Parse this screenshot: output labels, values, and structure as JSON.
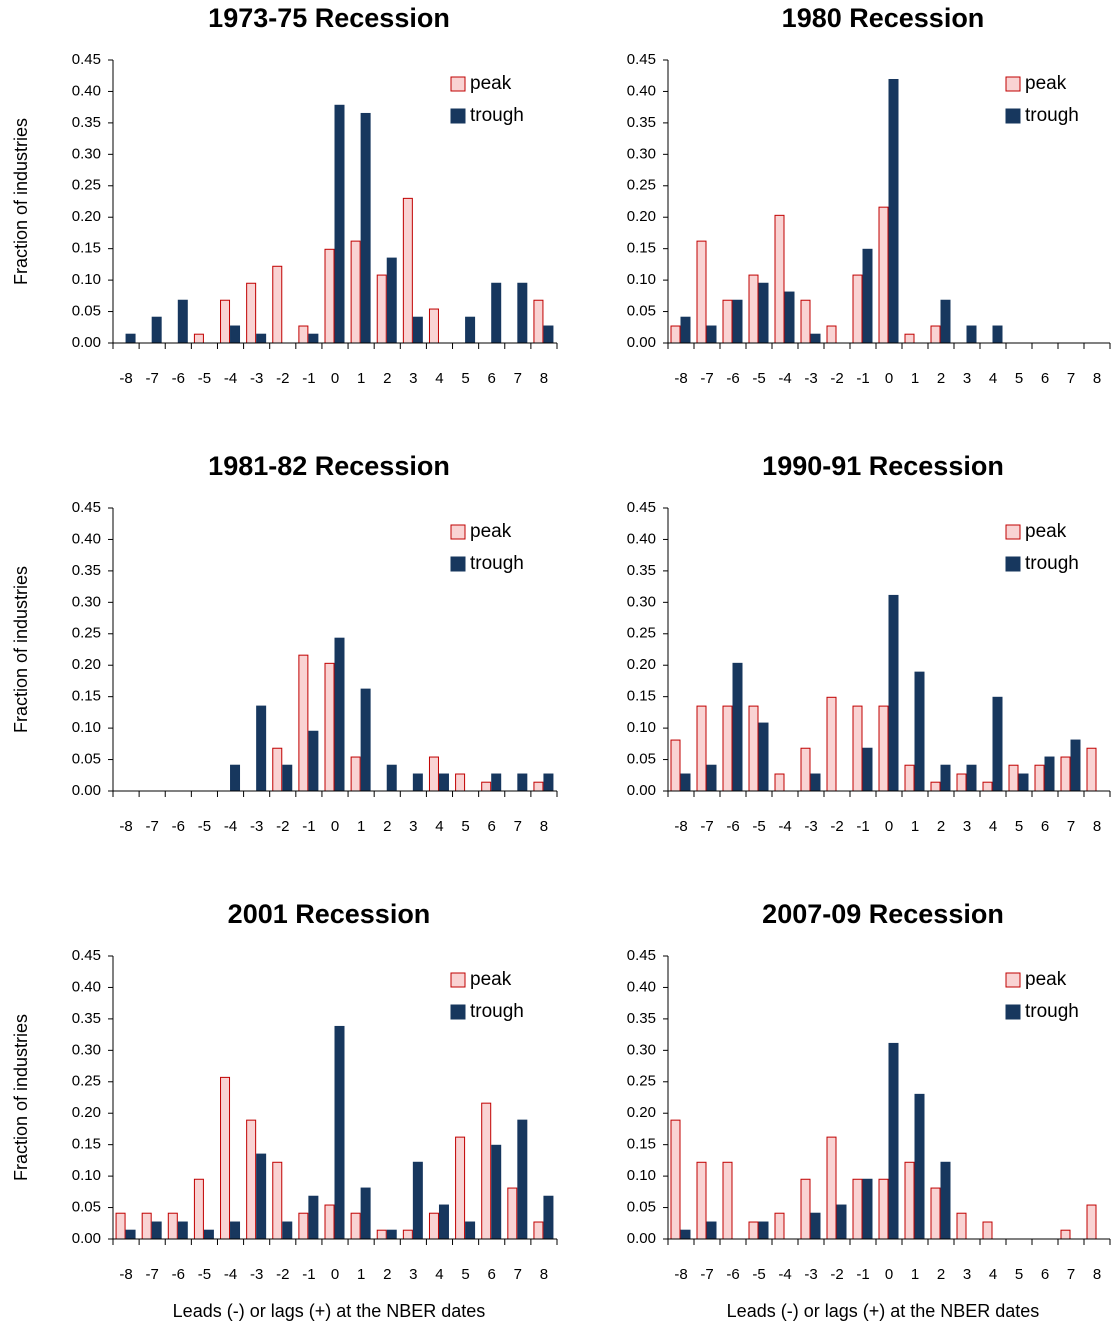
{
  "chart_data": [
    {
      "type": "bar",
      "title": "1973-75 Recession",
      "y_label": "Fraction of industries",
      "categories": [
        "-8",
        "-7",
        "-6",
        "-5",
        "-4",
        "-3",
        "-2",
        "-1",
        "0",
        "1",
        "2",
        "3",
        "4",
        "5",
        "6",
        "7",
        "8"
      ],
      "series": [
        {
          "name": "peak",
          "color": "#f9d3d3",
          "edge": "#c00000",
          "values": [
            0,
            0,
            0,
            0.014,
            0.068,
            0.095,
            0.122,
            0.027,
            0.149,
            0.162,
            0.108,
            0.23,
            0.054,
            0,
            0,
            0,
            0.068
          ]
        },
        {
          "name": "trough",
          "color": "#17375e",
          "edge": "#17375e",
          "values": [
            0.014,
            0.041,
            0.068,
            0,
            0.027,
            0.014,
            0,
            0.014,
            0.378,
            0.365,
            0.135,
            0.041,
            0,
            0.041,
            0.095,
            0.095,
            0.027
          ]
        }
      ],
      "ylim": [
        0,
        0.45
      ],
      "yticks": [
        {
          "value": 0,
          "label": "0.00"
        },
        {
          "value": 0.05,
          "label": "0.05"
        },
        {
          "value": 0.1,
          "label": "0.10"
        },
        {
          "value": 0.15,
          "label": "0.15"
        },
        {
          "value": 0.2,
          "label": "0.20"
        },
        {
          "value": 0.25,
          "label": "0.25"
        },
        {
          "value": 0.3,
          "label": "0.30"
        },
        {
          "value": 0.35,
          "label": "0.35"
        },
        {
          "value": 0.4,
          "label": "0.40"
        },
        {
          "value": 0.45,
          "label": "0.45"
        }
      ]
    },
    {
      "type": "bar",
      "title": "1980 Recession",
      "categories": [
        "-8",
        "-7",
        "-6",
        "-5",
        "-4",
        "-3",
        "-2",
        "-1",
        "0",
        "1",
        "2",
        "3",
        "4",
        "5",
        "6",
        "7",
        "8"
      ],
      "series": [
        {
          "name": "peak",
          "color": "#f9d3d3",
          "edge": "#c00000",
          "values": [
            0.027,
            0.162,
            0.068,
            0.108,
            0.203,
            0.068,
            0.027,
            0.108,
            0.216,
            0.014,
            0.027,
            0,
            0,
            0,
            0,
            0,
            0
          ]
        },
        {
          "name": "trough",
          "color": "#17375e",
          "edge": "#17375e",
          "values": [
            0.041,
            0.027,
            0.068,
            0.095,
            0.081,
            0.014,
            0,
            0.149,
            0.419,
            0,
            0.068,
            0.027,
            0.027,
            0,
            0,
            0,
            0
          ]
        }
      ],
      "ylim": [
        0,
        0.45
      ],
      "yticks": [
        {
          "value": 0,
          "label": "0.00"
        },
        {
          "value": 0.05,
          "label": "0.05"
        },
        {
          "value": 0.1,
          "label": "0.10"
        },
        {
          "value": 0.15,
          "label": "0.15"
        },
        {
          "value": 0.2,
          "label": "0.20"
        },
        {
          "value": 0.25,
          "label": "0.25"
        },
        {
          "value": 0.3,
          "label": "0.30"
        },
        {
          "value": 0.35,
          "label": "0.35"
        },
        {
          "value": 0.4,
          "label": "0.40"
        },
        {
          "value": 0.45,
          "label": "0.45"
        }
      ]
    },
    {
      "type": "bar",
      "title": "1981-82 Recession",
      "y_label": "Fraction of industries",
      "categories": [
        "-8",
        "-7",
        "-6",
        "-5",
        "-4",
        "-3",
        "-2",
        "-1",
        "0",
        "1",
        "2",
        "3",
        "4",
        "5",
        "6",
        "7",
        "8"
      ],
      "series": [
        {
          "name": "peak",
          "color": "#f9d3d3",
          "edge": "#c00000",
          "values": [
            0,
            0,
            0,
            0,
            0,
            0,
            0.068,
            0.216,
            0.203,
            0.054,
            0,
            0,
            0.054,
            0.027,
            0.014,
            0,
            0.014
          ]
        },
        {
          "name": "trough",
          "color": "#17375e",
          "edge": "#17375e",
          "values": [
            0,
            0,
            0,
            0,
            0.041,
            0.135,
            0.041,
            0.095,
            0.243,
            0.162,
            0.041,
            0.027,
            0.027,
            0,
            0.027,
            0.027,
            0.027
          ]
        }
      ],
      "ylim": [
        0,
        0.45
      ],
      "yticks": [
        {
          "value": 0,
          "label": "0.00"
        },
        {
          "value": 0.05,
          "label": "0.05"
        },
        {
          "value": 0.1,
          "label": "0.10"
        },
        {
          "value": 0.15,
          "label": "0.15"
        },
        {
          "value": 0.2,
          "label": "0.20"
        },
        {
          "value": 0.25,
          "label": "0.25"
        },
        {
          "value": 0.3,
          "label": "0.30"
        },
        {
          "value": 0.35,
          "label": "0.35"
        },
        {
          "value": 0.4,
          "label": "0.40"
        },
        {
          "value": 0.45,
          "label": "0.45"
        }
      ]
    },
    {
      "type": "bar",
      "title": "1990-91 Recession",
      "categories": [
        "-8",
        "-7",
        "-6",
        "-5",
        "-4",
        "-3",
        "-2",
        "-1",
        "0",
        "1",
        "2",
        "3",
        "4",
        "5",
        "6",
        "7",
        "8"
      ],
      "series": [
        {
          "name": "peak",
          "color": "#f9d3d3",
          "edge": "#c00000",
          "values": [
            0.081,
            0.135,
            0.135,
            0.135,
            0.027,
            0.068,
            0.149,
            0.135,
            0.135,
            0.041,
            0.014,
            0.027,
            0.014,
            0.041,
            0.041,
            0.054,
            0.068
          ]
        },
        {
          "name": "trough",
          "color": "#17375e",
          "edge": "#17375e",
          "values": [
            0.027,
            0.041,
            0.203,
            0.108,
            0,
            0.027,
            0,
            0.068,
            0.311,
            0.189,
            0.041,
            0.041,
            0.149,
            0.027,
            0.054,
            0.081,
            0
          ]
        }
      ],
      "ylim": [
        0,
        0.45
      ],
      "yticks": [
        {
          "value": 0,
          "label": "0.00"
        },
        {
          "value": 0.05,
          "label": "0.05"
        },
        {
          "value": 0.1,
          "label": "0.10"
        },
        {
          "value": 0.15,
          "label": "0.15"
        },
        {
          "value": 0.2,
          "label": "0.20"
        },
        {
          "value": 0.25,
          "label": "0.25"
        },
        {
          "value": 0.3,
          "label": "0.30"
        },
        {
          "value": 0.35,
          "label": "0.35"
        },
        {
          "value": 0.4,
          "label": "0.40"
        },
        {
          "value": 0.45,
          "label": "0.45"
        }
      ]
    },
    {
      "type": "bar",
      "title": "2001 Recession",
      "y_label": "Fraction of industries",
      "x_label": "Leads (-) or lags (+) at the NBER dates",
      "categories": [
        "-8",
        "-7",
        "-6",
        "-5",
        "-4",
        "-3",
        "-2",
        "-1",
        "0",
        "1",
        "2",
        "3",
        "4",
        "5",
        "6",
        "7",
        "8"
      ],
      "series": [
        {
          "name": "peak",
          "color": "#f9d3d3",
          "edge": "#c00000",
          "values": [
            0.041,
            0.041,
            0.041,
            0.095,
            0.257,
            0.189,
            0.122,
            0.041,
            0.054,
            0.041,
            0.014,
            0.014,
            0.041,
            0.162,
            0.216,
            0.081,
            0.027
          ]
        },
        {
          "name": "trough",
          "color": "#17375e",
          "edge": "#17375e",
          "values": [
            0.014,
            0.027,
            0.027,
            0.014,
            0.027,
            0.135,
            0.027,
            0.068,
            0.338,
            0.081,
            0.014,
            0.122,
            0.054,
            0.027,
            0.149,
            0.189,
            0.068
          ]
        }
      ],
      "ylim": [
        0,
        0.45
      ],
      "yticks": [
        {
          "value": 0,
          "label": "0.00"
        },
        {
          "value": 0.05,
          "label": "0.05"
        },
        {
          "value": 0.1,
          "label": "0.10"
        },
        {
          "value": 0.15,
          "label": "0.15"
        },
        {
          "value": 0.2,
          "label": "0.20"
        },
        {
          "value": 0.25,
          "label": "0.25"
        },
        {
          "value": 0.3,
          "label": "0.30"
        },
        {
          "value": 0.35,
          "label": "0.35"
        },
        {
          "value": 0.4,
          "label": "0.40"
        },
        {
          "value": 0.45,
          "label": "0.45"
        }
      ]
    },
    {
      "type": "bar",
      "title": "2007-09 Recession",
      "x_label": "Leads (-) or lags (+) at the NBER dates",
      "categories": [
        "-8",
        "-7",
        "-6",
        "-5",
        "-4",
        "-3",
        "-2",
        "-1",
        "0",
        "1",
        "2",
        "3",
        "4",
        "5",
        "6",
        "7",
        "8"
      ],
      "series": [
        {
          "name": "peak",
          "color": "#f9d3d3",
          "edge": "#c00000",
          "values": [
            0.189,
            0.122,
            0.122,
            0.027,
            0.041,
            0.095,
            0.162,
            0.095,
            0.095,
            0.122,
            0.081,
            0.041,
            0.027,
            0,
            0,
            0.014,
            0.054
          ]
        },
        {
          "name": "trough",
          "color": "#17375e",
          "edge": "#17375e",
          "values": [
            0.014,
            0.027,
            0,
            0.027,
            0,
            0.041,
            0.054,
            0.095,
            0.311,
            0.23,
            0.122,
            0,
            0,
            0,
            0,
            0,
            0
          ]
        }
      ],
      "ylim": [
        0,
        0.45
      ],
      "yticks": [
        {
          "value": 0,
          "label": "0.00"
        },
        {
          "value": 0.05,
          "label": "0.05"
        },
        {
          "value": 0.1,
          "label": "0.10"
        },
        {
          "value": 0.15,
          "label": "0.15"
        },
        {
          "value": 0.2,
          "label": "0.20"
        },
        {
          "value": 0.25,
          "label": "0.25"
        },
        {
          "value": 0.3,
          "label": "0.30"
        },
        {
          "value": 0.35,
          "label": "0.35"
        },
        {
          "value": 0.4,
          "label": "0.40"
        },
        {
          "value": 0.45,
          "label": "0.45"
        }
      ]
    }
  ]
}
